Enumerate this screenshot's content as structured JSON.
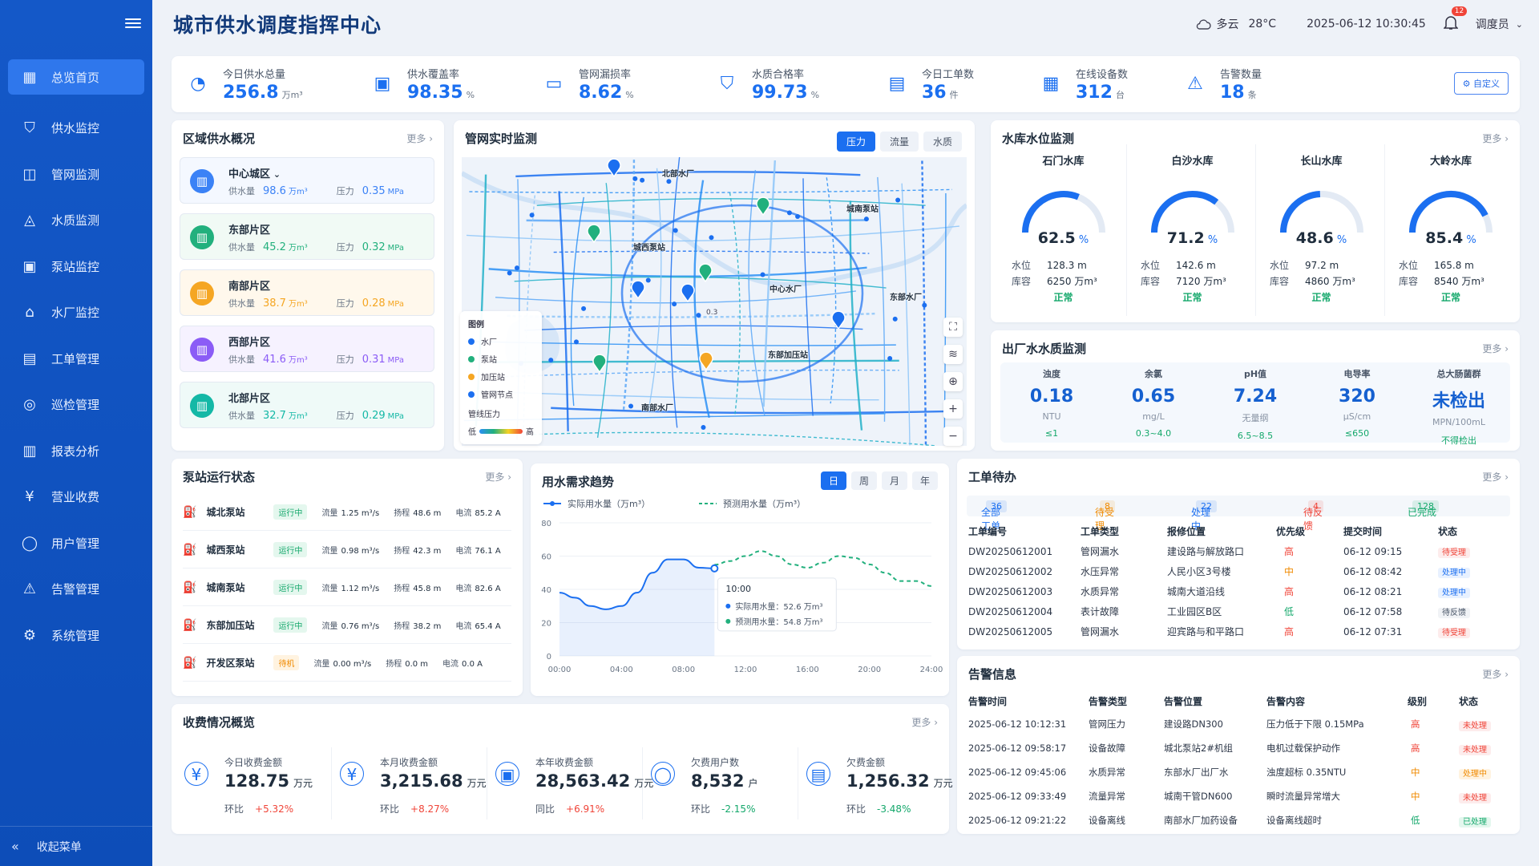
{
  "app": {
    "title": "城市供水调度指挥中心"
  },
  "header": {
    "weather": "多云",
    "temperature": "28°C",
    "datetime": "2025-06-12 10:30:45",
    "notification_count": "12",
    "user": "调度员"
  },
  "sidebar": {
    "items": [
      {
        "label": "总览首页",
        "icon": "dashboard-icon",
        "active": true
      },
      {
        "label": "供水监控",
        "icon": "shield-check-icon"
      },
      {
        "label": "管网监测",
        "icon": "pipe-icon"
      },
      {
        "label": "水质监测",
        "icon": "water-drop-icon"
      },
      {
        "label": "泵站监控",
        "icon": "pump-icon"
      },
      {
        "label": "水厂监控",
        "icon": "factory-icon"
      },
      {
        "label": "工单管理",
        "icon": "document-icon"
      },
      {
        "label": "巡检管理",
        "icon": "inspection-icon"
      },
      {
        "label": "报表分析",
        "icon": "bar-chart-icon"
      },
      {
        "label": "营业收费",
        "icon": "yen-icon"
      },
      {
        "label": "用户管理",
        "icon": "user-icon"
      },
      {
        "label": "告警管理",
        "icon": "alert-icon"
      },
      {
        "label": "系统管理",
        "icon": "gear-icon"
      }
    ],
    "collapse_label": "收起菜单"
  },
  "stats": {
    "items": [
      {
        "label": "今日供水总量",
        "value": "256.8",
        "unit": "万m³"
      },
      {
        "label": "供水覆盖率",
        "value": "98.35",
        "unit": "%"
      },
      {
        "label": "管网漏损率",
        "value": "8.62",
        "unit": "%"
      },
      {
        "label": "水质合格率",
        "value": "99.73",
        "unit": "%"
      },
      {
        "label": "今日工单数",
        "value": "36",
        "unit": "件"
      },
      {
        "label": "在线设备数",
        "value": "312",
        "unit": "台"
      },
      {
        "label": "告警数量",
        "value": "18",
        "unit": "条"
      }
    ],
    "custom_label": "自定义"
  },
  "region": {
    "title": "区域供水概况",
    "more": "更多",
    "supply_label": "供水量",
    "pressure_label": "压力",
    "items": [
      {
        "name": "中心城区",
        "supply": "98.6",
        "supply_unit": "万m³",
        "pressure": "0.35",
        "pressure_unit": "MPa",
        "color": "#3b82f6",
        "bg": "#f4f8ff"
      },
      {
        "name": "东部片区",
        "supply": "45.2",
        "supply_unit": "万m³",
        "pressure": "0.32",
        "pressure_unit": "MPa",
        "color": "#22b07d",
        "bg": "#f1faf5"
      },
      {
        "name": "南部片区",
        "supply": "38.7",
        "supply_unit": "万m³",
        "pressure": "0.28",
        "pressure_unit": "MPa",
        "color": "#f5a623",
        "bg": "#fff8ec"
      },
      {
        "name": "西部片区",
        "supply": "41.6",
        "supply_unit": "万m³",
        "pressure": "0.31",
        "pressure_unit": "MPa",
        "color": "#8b5cf6",
        "bg": "#f6f2ff"
      },
      {
        "name": "北部片区",
        "supply": "32.7",
        "supply_unit": "万m³",
        "pressure": "0.29",
        "pressure_unit": "MPa",
        "color": "#14b8a6",
        "bg": "#effaf8"
      }
    ]
  },
  "pipe_monitor": {
    "title": "管网实时监测",
    "tabs": [
      "压力",
      "流量",
      "水质"
    ],
    "labels": [
      "北部水厂",
      "城西泵站",
      "城南泵站",
      "中心水厂",
      "东部水厂",
      "东部加压站",
      "南部水厂"
    ],
    "legend": {
      "title": "图例",
      "items": [
        "水厂",
        "泵站",
        "加压站",
        "管网节点"
      ],
      "pressure_title": "管线压力",
      "low": "低",
      "high": "高"
    },
    "node_label": "0.3"
  },
  "reservoir": {
    "title": "水库水位监测",
    "more": "更多",
    "level_label": "水位",
    "capacity_label": "库容",
    "items": [
      {
        "name": "石门水库",
        "percent": 62.5,
        "level": "128.3 m",
        "capacity": "6250 万m³",
        "status": "正常"
      },
      {
        "name": "白沙水库",
        "percent": 71.2,
        "level": "142.6 m",
        "capacity": "7120 万m³",
        "status": "正常"
      },
      {
        "name": "长山水库",
        "percent": 48.6,
        "level": "97.2 m",
        "capacity": "4860 万m³",
        "status": "正常"
      },
      {
        "name": "大岭水库",
        "percent": 85.4,
        "level": "165.8 m",
        "capacity": "8540 万m³",
        "status": "正常"
      }
    ]
  },
  "water_quality": {
    "title": "出厂水水质监测",
    "more": "更多",
    "items": [
      {
        "name": "浊度",
        "value": "0.18",
        "unit": "NTU",
        "limit": "≤1"
      },
      {
        "name": "余氯",
        "value": "0.65",
        "unit": "mg/L",
        "limit": "0.3~4.0"
      },
      {
        "name": "pH值",
        "value": "7.24",
        "unit": "无量纲",
        "limit": "6.5~8.5"
      },
      {
        "name": "电导率",
        "value": "320",
        "unit": "μS/cm",
        "limit": "≤650"
      },
      {
        "name": "总大肠菌群",
        "value": "未检出",
        "unit": "MPN/100mL",
        "limit": "不得检出"
      }
    ]
  },
  "pumps": {
    "title": "泵站运行状态",
    "more": "更多",
    "flow_label": "流量",
    "head_label": "扬程",
    "current_label": "电流",
    "items": [
      {
        "name": "城北泵站",
        "status": "运行中",
        "flow": "1.25 m³/s",
        "head": "48.6 m",
        "current": "85.2 A"
      },
      {
        "name": "城西泵站",
        "status": "运行中",
        "flow": "0.98 m³/s",
        "head": "42.3 m",
        "current": "76.1 A"
      },
      {
        "name": "城南泵站",
        "status": "运行中",
        "flow": "1.12 m³/s",
        "head": "45.8 m",
        "current": "82.6 A"
      },
      {
        "name": "东部加压站",
        "status": "运行中",
        "flow": "0.76 m³/s",
        "head": "38.2 m",
        "current": "65.4 A"
      },
      {
        "name": "开发区泵站",
        "status": "待机",
        "flow": "0.00 m³/s",
        "head": "0.0 m",
        "current": "0.0 A"
      }
    ]
  },
  "demand": {
    "title": "用水需求趋势",
    "tabs": [
      "日",
      "周",
      "月",
      "年"
    ],
    "tooltip": {
      "time": "10:00",
      "actual": "实际用水量：52.6 万m³",
      "forecast": "预测用水量：54.8 万m³"
    }
  },
  "chart_data": {
    "type": "line",
    "x": [
      "00:00",
      "01:00",
      "02:00",
      "03:00",
      "04:00",
      "05:00",
      "06:00",
      "07:00",
      "08:00",
      "09:00",
      "10:00",
      "11:00",
      "12:00",
      "13:00",
      "14:00",
      "15:00",
      "16:00",
      "17:00",
      "18:00",
      "19:00",
      "20:00",
      "21:00",
      "22:00",
      "23:00",
      "24:00"
    ],
    "x_ticks": [
      "00:00",
      "04:00",
      "08:00",
      "12:00",
      "16:00",
      "20:00",
      "24:00"
    ],
    "ylim": [
      0,
      80
    ],
    "y_ticks": [
      0,
      20,
      40,
      60,
      80
    ],
    "series": [
      {
        "name": "实际用水量（万m³）",
        "color": "#1b6ff0",
        "style": "solid",
        "values": [
          38,
          35,
          30,
          28,
          30,
          38,
          50,
          58,
          58,
          53,
          52.6,
          null,
          null,
          null,
          null,
          null,
          null,
          null,
          null,
          null,
          null,
          null,
          null,
          null,
          null
        ]
      },
      {
        "name": "预测用水量（万m³）",
        "color": "#22b07d",
        "style": "dashed",
        "values": [
          null,
          null,
          null,
          null,
          null,
          null,
          null,
          null,
          null,
          null,
          54.8,
          57,
          60,
          63,
          60,
          55,
          53,
          56,
          60,
          59,
          55,
          50,
          45,
          45,
          42
        ]
      }
    ],
    "grid": true,
    "legend": "top-left"
  },
  "work_orders": {
    "title": "工单待办",
    "more": "更多",
    "tabs": [
      {
        "label": "全部工单",
        "count": "36",
        "color": "#1b6ff0"
      },
      {
        "label": "待受理",
        "count": "8",
        "color": "#f08a00"
      },
      {
        "label": "处理中",
        "count": "22",
        "color": "#1b6ff0"
      },
      {
        "label": "待反馈",
        "count": "4",
        "color": "#f04438"
      },
      {
        "label": "已完成",
        "count": "128",
        "color": "#14a86b"
      }
    ],
    "headers": [
      "工单编号",
      "工单类型",
      "报修位置",
      "优先级",
      "提交时间",
      "状态"
    ],
    "rows": [
      {
        "id": "DW20250612001",
        "type": "管网漏水",
        "location": "建设路与解放路口",
        "priority": "高",
        "time": "06-12 09:15",
        "status": "待受理"
      },
      {
        "id": "DW20250612002",
        "type": "水压异常",
        "location": "人民小区3号楼",
        "priority": "中",
        "time": "06-12 08:42",
        "status": "处理中"
      },
      {
        "id": "DW20250612003",
        "type": "水质异常",
        "location": "城南大道沿线",
        "priority": "高",
        "time": "06-12 08:21",
        "status": "处理中"
      },
      {
        "id": "DW20250612004",
        "type": "表计故障",
        "location": "工业园区B区",
        "priority": "低",
        "time": "06-12 07:58",
        "status": "待反馈"
      },
      {
        "id": "DW20250612005",
        "type": "管网漏水",
        "location": "迎宾路与和平路口",
        "priority": "高",
        "time": "06-12 07:31",
        "status": "待受理"
      }
    ]
  },
  "alarms": {
    "title": "告警信息",
    "more": "更多",
    "headers": [
      "告警时间",
      "告警类型",
      "告警位置",
      "告警内容",
      "级别",
      "状态"
    ],
    "rows": [
      {
        "time": "2025-06-12 10:12:31",
        "type": "管网压力",
        "location": "建设路DN300",
        "content": "压力低于下限 0.15MPa",
        "level": "高",
        "status": "未处理"
      },
      {
        "time": "2025-06-12 09:58:17",
        "type": "设备故障",
        "location": "城北泵站2#机组",
        "content": "电机过载保护动作",
        "level": "高",
        "status": "未处理"
      },
      {
        "time": "2025-06-12 09:45:06",
        "type": "水质异常",
        "location": "东部水厂出厂水",
        "content": "浊度超标 0.35NTU",
        "level": "中",
        "status": "处理中"
      },
      {
        "time": "2025-06-12 09:33:49",
        "type": "流量异常",
        "location": "城南干管DN600",
        "content": "瞬时流量异常增大",
        "level": "中",
        "status": "未处理"
      },
      {
        "time": "2025-06-12 09:21:22",
        "type": "设备离线",
        "location": "南部水厂加药设备",
        "content": "设备离线超时",
        "level": "低",
        "status": "已处理"
      }
    ]
  },
  "fees": {
    "title": "收费情况概览",
    "more": "更多",
    "items": [
      {
        "label": "今日收费金额",
        "value": "128.75",
        "unit": "万元",
        "cmp_label": "环比",
        "cmp": "+5.32%",
        "cmp_color": "#f04438"
      },
      {
        "label": "本月收费金额",
        "value": "3,215.68",
        "unit": "万元",
        "cmp_label": "环比",
        "cmp": "+8.27%",
        "cmp_color": "#f04438"
      },
      {
        "label": "本年收费金额",
        "value": "28,563.42",
        "unit": "万元",
        "cmp_label": "同比",
        "cmp": "+6.91%",
        "cmp_color": "#f04438"
      },
      {
        "label": "欠费用户数",
        "value": "8,532",
        "unit": "户",
        "cmp_label": "环比",
        "cmp": "-2.15%",
        "cmp_color": "#14a86b"
      },
      {
        "label": "欠费金额",
        "value": "1,256.32",
        "unit": "万元",
        "cmp_label": "环比",
        "cmp": "-3.48%",
        "cmp_color": "#14a86b"
      }
    ]
  }
}
